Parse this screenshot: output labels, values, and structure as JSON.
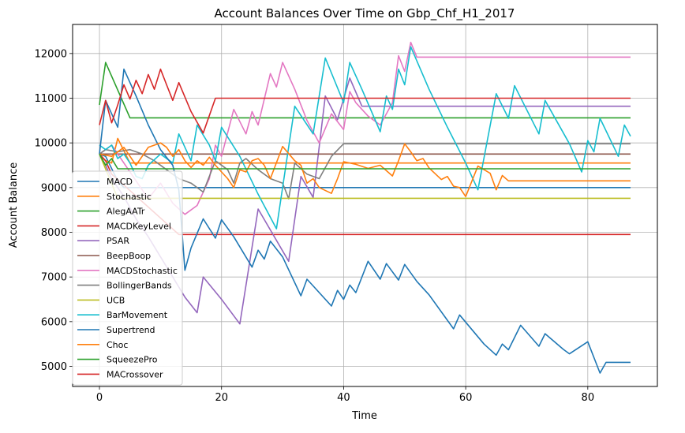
{
  "chart_data": {
    "type": "line",
    "title": "Account Balances Over Time on Gbp_Chf_H1_2017",
    "xlabel": "Time",
    "ylabel": "Account Balance",
    "xlim": [
      -4.4,
      91.4
    ],
    "ylim": [
      4550,
      12650
    ],
    "xticks": [
      0,
      20,
      40,
      60,
      80
    ],
    "yticks": [
      5000,
      6000,
      7000,
      8000,
      9000,
      10000,
      11000,
      12000
    ],
    "xtick_labels": [
      "0",
      "20",
      "40",
      "60",
      "80"
    ],
    "ytick_labels": [
      "5000",
      "6000",
      "7000",
      "8000",
      "9000",
      "10000",
      "11000",
      "12000"
    ],
    "grid": true,
    "legend_position": "lower-left",
    "series": [
      {
        "name": "MACD",
        "color": "#1f77b4",
        "x": [
          0,
          1,
          3,
          4,
          87
        ],
        "y": [
          9750,
          9700,
          9150,
          9000,
          9000
        ]
      },
      {
        "name": "Stochastic",
        "color": "#ff7f0e",
        "x": [
          0,
          1,
          2,
          3,
          5,
          87
        ],
        "y": [
          9750,
          9600,
          9550,
          10100,
          9550,
          9550
        ]
      },
      {
        "name": "AlegAATr",
        "color": "#2ca02c",
        "x": [
          0,
          1,
          5,
          87
        ],
        "y": [
          10850,
          11800,
          10560,
          10560
        ]
      },
      {
        "name": "MACDKeyLevel",
        "color": "#d62728",
        "x": [
          0,
          1,
          2,
          13,
          87
        ],
        "y": [
          9750,
          9600,
          9300,
          7950,
          7950
        ]
      },
      {
        "name": "PSAR",
        "color": "#9467bd",
        "x": [
          0,
          1,
          2,
          4,
          6,
          8,
          10,
          12,
          14,
          16,
          17,
          20,
          23,
          26,
          31,
          33,
          35,
          37,
          39,
          41,
          43,
          87
        ],
        "y": [
          9750,
          9500,
          9200,
          8800,
          8300,
          7900,
          7450,
          7000,
          6550,
          6200,
          7000,
          6500,
          5950,
          8520,
          7350,
          9250,
          8780,
          11050,
          10520,
          11450,
          10820,
          10820
        ]
      },
      {
        "name": "BeepBoop",
        "color": "#8c564b",
        "x": [
          0,
          87
        ],
        "y": [
          9750,
          9750
        ]
      },
      {
        "name": "MACDStochastic",
        "color": "#e377c2",
        "x": [
          0,
          2,
          4,
          6,
          8,
          10,
          12,
          14,
          16,
          18,
          19,
          20,
          22,
          24,
          25,
          26,
          28,
          29,
          30,
          32,
          34,
          36,
          38,
          40,
          41,
          42,
          44,
          46,
          48,
          49,
          50,
          51,
          52,
          87
        ],
        "y": [
          9750,
          9950,
          9550,
          9150,
          8750,
          9100,
          8650,
          8400,
          8600,
          9200,
          9950,
          9700,
          10750,
          10200,
          10700,
          10400,
          11550,
          11250,
          11800,
          11200,
          10500,
          10000,
          10650,
          10300,
          11150,
          10900,
          10600,
          10400,
          10900,
          11950,
          11600,
          12250,
          11920,
          11920
        ]
      },
      {
        "name": "BollingerBands",
        "color": "#7f7f7f",
        "x": [
          0,
          1,
          3,
          5,
          7,
          9,
          11,
          13,
          15,
          17,
          19,
          21,
          22,
          23,
          24,
          26,
          28,
          30,
          31,
          32,
          34,
          36,
          38,
          40,
          87
        ],
        "y": [
          9750,
          9850,
          9800,
          9850,
          9750,
          9600,
          9400,
          9200,
          9100,
          8900,
          9600,
          9400,
          9100,
          9550,
          9650,
          9400,
          9200,
          9100,
          8750,
          9550,
          9300,
          9200,
          9700,
          9980,
          9980
        ]
      },
      {
        "name": "UCB",
        "color": "#bcbd22",
        "x": [
          0,
          3,
          87
        ],
        "y": [
          9750,
          8760,
          8760
        ]
      },
      {
        "name": "BarMovement",
        "color": "#17becf",
        "x": [
          0,
          1,
          2,
          3,
          4,
          5,
          6,
          7,
          8,
          10,
          12,
          13,
          15,
          16,
          18,
          19,
          20,
          23,
          26,
          29,
          32,
          35,
          37,
          40,
          41,
          43,
          46,
          47,
          48,
          49,
          50,
          51,
          54,
          57,
          60,
          62,
          65,
          67,
          68,
          72,
          73,
          77,
          79,
          80,
          81,
          82,
          85,
          86,
          87
        ],
        "y": [
          9950,
          9850,
          9950,
          9650,
          9750,
          9550,
          9250,
          9200,
          9500,
          9750,
          9550,
          10200,
          9600,
          10400,
          9950,
          9600,
          10350,
          9700,
          8850,
          8080,
          10820,
          10200,
          11900,
          10900,
          11800,
          11200,
          10250,
          11050,
          10750,
          11650,
          11300,
          12150,
          11200,
          10350,
          9550,
          8950,
          11100,
          10550,
          11280,
          10200,
          10950,
          9980,
          9350,
          10050,
          9800,
          10550,
          9700,
          10400,
          10150
        ]
      },
      {
        "name": "Supertrend",
        "color": "#1f77b4",
        "x": [
          0,
          1,
          3,
          4,
          6,
          8,
          10,
          12,
          13,
          14,
          15,
          17,
          19,
          20,
          22,
          25,
          26,
          27,
          28,
          30,
          33,
          34,
          35,
          38,
          39,
          40,
          41,
          42,
          44,
          46,
          47,
          49,
          50,
          52,
          54,
          58,
          59,
          63,
          65,
          66,
          67,
          69,
          72,
          73,
          76,
          77,
          80,
          82,
          83,
          87
        ],
        "y": [
          9750,
          10950,
          10350,
          11650,
          11050,
          10400,
          9850,
          9500,
          8950,
          7150,
          7650,
          8300,
          7870,
          8280,
          7900,
          7220,
          7600,
          7400,
          7800,
          7450,
          6580,
          6950,
          6800,
          6350,
          6700,
          6500,
          6820,
          6650,
          7350,
          6950,
          7300,
          6930,
          7280,
          6900,
          6600,
          5840,
          6150,
          5500,
          5250,
          5500,
          5370,
          5920,
          5450,
          5730,
          5380,
          5280,
          5550,
          4850,
          5090,
          5090
        ]
      },
      {
        "name": "Choc",
        "color": "#ff7f0e",
        "x": [
          0,
          2,
          4,
          6,
          8,
          10,
          11,
          12,
          13,
          14,
          15,
          16,
          17,
          18,
          19,
          20,
          21,
          22,
          23,
          24,
          25,
          26,
          27,
          28,
          30,
          32,
          33,
          34,
          35,
          36,
          38,
          39,
          40,
          42,
          44,
          46,
          48,
          49,
          50,
          51,
          52,
          53,
          54,
          56,
          57,
          58,
          59,
          60,
          62,
          64,
          65,
          66,
          67,
          87
        ],
        "y": [
          9750,
          9700,
          9900,
          9500,
          9900,
          10000,
          9900,
          9700,
          9850,
          9600,
          9450,
          9600,
          9500,
          9680,
          9500,
          9350,
          9200,
          9000,
          9400,
          9350,
          9600,
          9650,
          9500,
          9200,
          9920,
          9600,
          9500,
          9100,
          9200,
          9000,
          8870,
          9200,
          9580,
          9520,
          9430,
          9500,
          9260,
          9600,
          9980,
          9800,
          9600,
          9650,
          9440,
          9180,
          9250,
          9030,
          9000,
          8800,
          9480,
          9320,
          8950,
          9270,
          9150,
          9150
        ]
      },
      {
        "name": "SqueezePro",
        "color": "#2ca02c",
        "x": [
          0,
          1,
          2,
          3,
          87
        ],
        "y": [
          9750,
          9500,
          9650,
          9420,
          9420
        ]
      },
      {
        "name": "MACrossover",
        "color": "#d62728",
        "x": [
          0,
          1,
          2,
          3,
          4,
          5,
          6,
          7,
          8,
          9,
          10,
          11,
          12,
          13,
          15,
          17,
          19,
          87
        ],
        "y": [
          10400,
          10950,
          10450,
          10850,
          11300,
          10980,
          11400,
          11100,
          11530,
          11200,
          11650,
          11300,
          10950,
          11350,
          10700,
          10220,
          11000,
          11000
        ]
      }
    ]
  }
}
